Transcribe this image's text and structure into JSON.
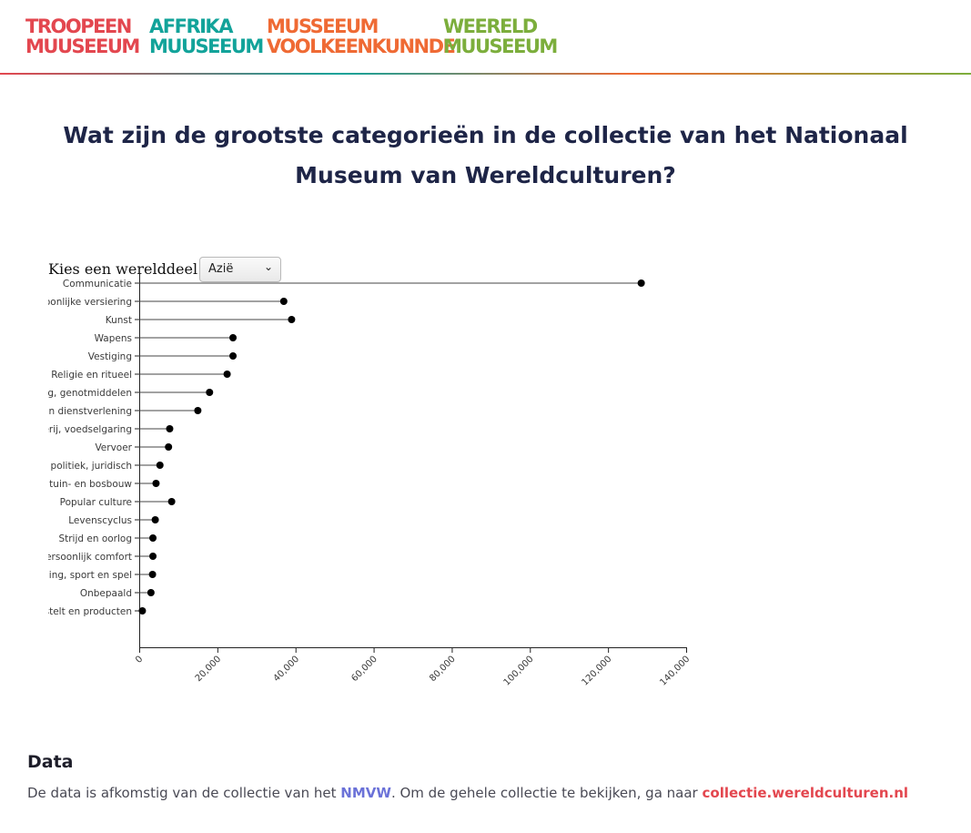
{
  "header": {
    "logos": [
      {
        "line1": "TROOPEEN",
        "line2": "MUUSEEUM",
        "color": "#e3474f"
      },
      {
        "line1": "AFFRIKA",
        "line2": "MUUSEEUM",
        "color": "#12a39a"
      },
      {
        "line1": "MUSSEEUM",
        "line2": "VOOLKEENKUNNDE",
        "color": "#ef6a34"
      },
      {
        "line1": "WEERELD",
        "line2": "MUUSEEUM",
        "color": "#7cae3c"
      }
    ]
  },
  "page": {
    "title": "Wat zijn de grootste categorieën in de collectie van het Nationaal Museum van Wereldculturen?"
  },
  "selector": {
    "label": "Kies een werelddeel",
    "selected": "Azië"
  },
  "chart_data": {
    "type": "lollipop",
    "orientation": "horizontal",
    "categories": [
      "Communicatie",
      "Persoonlijke versiering",
      "Kunst",
      "Wapens",
      "Vestiging",
      "Religie en ritueel",
      "Voeding, genotmiddelen",
      "Handel en dienstverlening",
      "Landbouw, veeteelt, jacht, visserij, voedselgaring",
      "Vervoer",
      "Sociaal, politiek, juridisch",
      "Land-, tuin- en bosbouw",
      "Popular culture",
      "Levenscyclus",
      "Strijd en oorlog",
      "Persoonlijk comfort",
      "Ontspanning, sport en spel",
      "Onbepaald",
      "Materiaal, gereedschap, gestelt en producten"
    ],
    "values": [
      128500,
      37000,
      39000,
      24000,
      24000,
      22500,
      18000,
      15000,
      7800,
      7500,
      5300,
      4300,
      8300,
      4100,
      3500,
      3500,
      3400,
      3000,
      800
    ],
    "xlim": [
      0,
      140000
    ],
    "xticks": [
      0,
      20000,
      40000,
      60000,
      80000,
      100000,
      120000,
      140000
    ],
    "xtick_labels": [
      "0",
      "20,000",
      "40,000",
      "60,000",
      "80,000",
      "100,000",
      "120,000",
      "140,000"
    ],
    "grid": false,
    "line_color": "#444444",
    "point_color": "#000000"
  },
  "footer": {
    "heading": "Data",
    "text_before": "De data is afkomstig van de collectie van het ",
    "link1": "NMVW",
    "text_middle": ". Om de gehele collectie te bekijken, ga naar ",
    "link2": "collectie.wereldculturen.nl",
    "link1_color": "#6b72d8",
    "link2_color": "#e3474f"
  }
}
